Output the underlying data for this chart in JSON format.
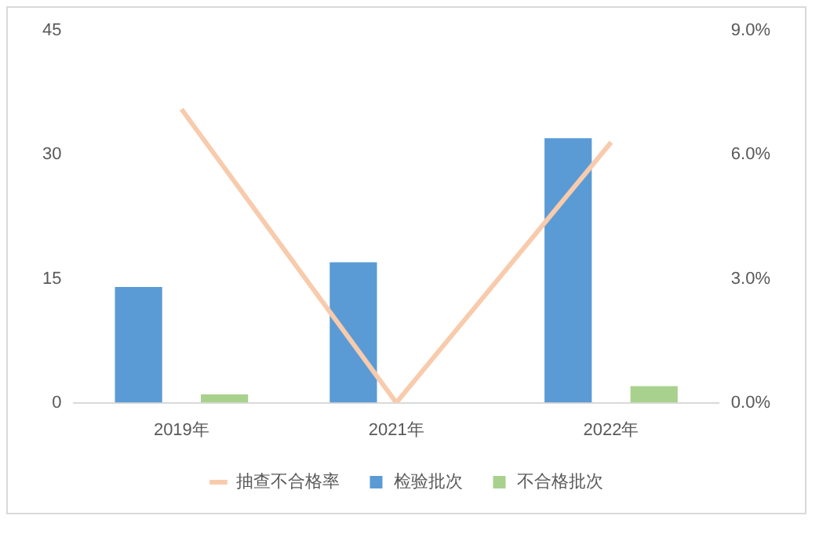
{
  "chart_data": {
    "type": "bar",
    "categories": [
      "2019年",
      "2021年",
      "2022年"
    ],
    "series": [
      {
        "name": "检验批次",
        "color": "#5b9bd5",
        "values": [
          14,
          17,
          32
        ]
      },
      {
        "name": "不合格批次",
        "color": "#a9d18e",
        "values": [
          1,
          0,
          2
        ]
      },
      {
        "name": "抽查不合格率",
        "type": "line",
        "axis": "y2",
        "color": "#f8cbad",
        "values": [
          7.1,
          0,
          6.3
        ]
      }
    ],
    "ylim": [
      0,
      45
    ],
    "yticks": [
      0,
      15,
      30,
      45
    ],
    "y2lim": [
      0,
      9
    ],
    "y2ticks": [
      {
        "value": 0,
        "label": "0.0%"
      },
      {
        "value": 3,
        "label": "3.0%"
      },
      {
        "value": 6,
        "label": "6.0%"
      },
      {
        "value": 9,
        "label": "9.0%"
      }
    ],
    "grid": false,
    "legend": "bottom",
    "marker": "none"
  }
}
